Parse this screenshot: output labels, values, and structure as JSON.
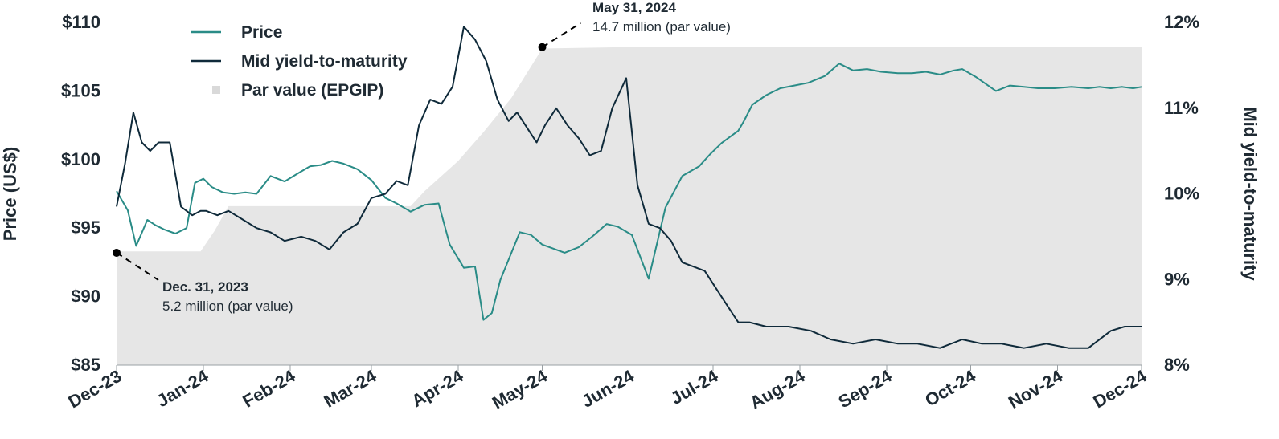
{
  "colors": {
    "price": "#2a8c87",
    "yield": "#0f2a3a",
    "par": "#e6e6e6",
    "text": "#1f2a33"
  },
  "chart_data": {
    "type": "line",
    "xlabel": "",
    "ylabel_left": "Price (US$)",
    "ylabel_right": "Mid yield-to-maturity",
    "x_range": [
      "2023-12-01",
      "2024-12-01"
    ],
    "ylim_left": [
      85,
      110
    ],
    "ylim_right": [
      8,
      12
    ],
    "yticks_left": [
      "$85",
      "$90",
      "$95",
      "$100",
      "$105",
      "$110"
    ],
    "yticks_left_values": [
      85,
      90,
      95,
      100,
      105,
      110
    ],
    "yticks_right": [
      "8%",
      "9%",
      "10%",
      "11%",
      "12%"
    ],
    "yticks_right_values": [
      8,
      9,
      10,
      11,
      12
    ],
    "xticks": [
      "Dec-23",
      "Jan-24",
      "Feb-24",
      "Mar-24",
      "Apr-24",
      "May-24",
      "Jun-24",
      "Jul-24",
      "Aug-24",
      "Sep-24",
      "Oct-24",
      "Nov-24",
      "Dec-24"
    ],
    "xtick_dates": [
      "2023-12-01",
      "2024-01-01",
      "2024-02-01",
      "2024-03-01",
      "2024-04-01",
      "2024-05-01",
      "2024-06-01",
      "2024-07-01",
      "2024-08-01",
      "2024-09-01",
      "2024-10-01",
      "2024-11-01",
      "2024-12-01"
    ],
    "legend": [
      {
        "name": "Price",
        "marker": "line"
      },
      {
        "name": "Mid yield-to-maturity",
        "marker": "line"
      },
      {
        "name": "Par value (EPGIP)",
        "marker": "square"
      }
    ],
    "legend_position": "top-left",
    "grid": false,
    "series": [
      {
        "name": "Price",
        "axis": "left",
        "x": [
          "2023-12-01",
          "2023-12-05",
          "2023-12-08",
          "2023-12-12",
          "2023-12-15",
          "2023-12-18",
          "2023-12-22",
          "2023-12-26",
          "2023-12-29",
          "2024-01-01",
          "2024-01-04",
          "2024-01-08",
          "2024-01-12",
          "2024-01-16",
          "2024-01-20",
          "2024-01-25",
          "2024-01-30",
          "2024-02-03",
          "2024-02-08",
          "2024-02-12",
          "2024-02-16",
          "2024-02-20",
          "2024-02-25",
          "2024-03-01",
          "2024-03-06",
          "2024-03-10",
          "2024-03-15",
          "2024-03-20",
          "2024-03-25",
          "2024-03-29",
          "2024-04-03",
          "2024-04-07",
          "2024-04-10",
          "2024-04-13",
          "2024-04-16",
          "2024-04-20",
          "2024-04-23",
          "2024-04-27",
          "2024-05-01",
          "2024-05-05",
          "2024-05-09",
          "2024-05-14",
          "2024-05-19",
          "2024-05-24",
          "2024-05-28",
          "2024-06-02",
          "2024-06-08",
          "2024-06-14",
          "2024-06-20",
          "2024-06-26",
          "2024-06-30",
          "2024-07-04",
          "2024-07-08",
          "2024-07-10",
          "2024-07-12",
          "2024-07-15",
          "2024-07-20",
          "2024-07-25",
          "2024-07-30",
          "2024-08-04",
          "2024-08-10",
          "2024-08-15",
          "2024-08-20",
          "2024-08-25",
          "2024-08-30",
          "2024-09-05",
          "2024-09-10",
          "2024-09-15",
          "2024-09-20",
          "2024-09-25",
          "2024-09-28",
          "2024-10-03",
          "2024-10-10",
          "2024-10-15",
          "2024-10-20",
          "2024-10-25",
          "2024-10-31",
          "2024-11-06",
          "2024-11-12",
          "2024-11-16",
          "2024-11-20",
          "2024-11-24",
          "2024-11-28",
          "2024-12-01"
        ],
        "values": [
          97.7,
          96.3,
          93.7,
          95.6,
          95.2,
          94.9,
          94.6,
          95.0,
          98.3,
          98.6,
          98.0,
          97.6,
          97.5,
          97.6,
          97.5,
          98.8,
          98.4,
          98.9,
          99.5,
          99.6,
          99.9,
          99.7,
          99.3,
          98.5,
          97.2,
          96.8,
          96.2,
          96.7,
          96.8,
          93.8,
          92.1,
          92.2,
          88.3,
          88.8,
          91.2,
          93.2,
          94.7,
          94.5,
          93.8,
          93.5,
          93.2,
          93.6,
          94.4,
          95.3,
          95.1,
          94.5,
          91.3,
          96.5,
          98.8,
          99.5,
          100.4,
          101.2,
          101.8,
          102.1,
          102.8,
          104.0,
          104.7,
          105.2,
          105.4,
          105.6,
          106.1,
          107.0,
          106.5,
          106.6,
          106.4,
          106.3,
          106.3,
          106.4,
          106.2,
          106.5,
          106.6,
          106.0,
          105.0,
          105.4,
          105.3,
          105.2,
          105.2,
          105.3,
          105.2,
          105.3,
          105.2,
          105.3,
          105.2,
          105.3
        ],
        "stroke_width": 2
      },
      {
        "name": "Mid yield-to-maturity",
        "axis": "right",
        "x": [
          "2023-12-01",
          "2023-12-04",
          "2023-12-07",
          "2023-12-10",
          "2023-12-13",
          "2023-12-16",
          "2023-12-20",
          "2023-12-24",
          "2023-12-28",
          "2023-12-31",
          "2024-01-02",
          "2024-01-06",
          "2024-01-10",
          "2024-01-15",
          "2024-01-20",
          "2024-01-25",
          "2024-01-30",
          "2024-02-05",
          "2024-02-10",
          "2024-02-15",
          "2024-02-20",
          "2024-02-25",
          "2024-03-01",
          "2024-03-06",
          "2024-03-10",
          "2024-03-14",
          "2024-03-18",
          "2024-03-22",
          "2024-03-26",
          "2024-03-30",
          "2024-04-03",
          "2024-04-07",
          "2024-04-11",
          "2024-04-15",
          "2024-04-19",
          "2024-04-22",
          "2024-04-25",
          "2024-04-27",
          "2024-04-29",
          "2024-05-02",
          "2024-05-06",
          "2024-05-10",
          "2024-05-14",
          "2024-05-18",
          "2024-05-22",
          "2024-05-26",
          "2024-05-31",
          "2024-06-04",
          "2024-06-08",
          "2024-06-12",
          "2024-06-16",
          "2024-06-20",
          "2024-06-24",
          "2024-06-28",
          "2024-07-02",
          "2024-07-06",
          "2024-07-08",
          "2024-07-10",
          "2024-07-14",
          "2024-07-20",
          "2024-07-28",
          "2024-08-05",
          "2024-08-12",
          "2024-08-20",
          "2024-08-28",
          "2024-09-05",
          "2024-09-12",
          "2024-09-20",
          "2024-09-28",
          "2024-10-05",
          "2024-10-12",
          "2024-10-20",
          "2024-10-28",
          "2024-11-05",
          "2024-11-12",
          "2024-11-20",
          "2024-11-25",
          "2024-12-01"
        ],
        "values": [
          9.85,
          10.35,
          10.95,
          10.6,
          10.5,
          10.6,
          10.6,
          9.85,
          9.75,
          9.8,
          9.8,
          9.75,
          9.8,
          9.7,
          9.6,
          9.55,
          9.45,
          9.5,
          9.45,
          9.35,
          9.55,
          9.65,
          9.95,
          10.0,
          10.15,
          10.1,
          10.8,
          11.1,
          11.05,
          11.25,
          11.95,
          11.8,
          11.55,
          11.1,
          10.85,
          10.95,
          10.8,
          10.7,
          10.6,
          10.8,
          11.0,
          10.8,
          10.65,
          10.45,
          10.5,
          11.0,
          11.35,
          10.1,
          9.65,
          9.6,
          9.45,
          9.2,
          9.15,
          9.1,
          8.9,
          8.7,
          8.6,
          8.5,
          8.5,
          8.45,
          8.45,
          8.4,
          8.3,
          8.25,
          8.3,
          8.25,
          8.25,
          8.2,
          8.3,
          8.25,
          8.25,
          8.2,
          8.25,
          8.2,
          8.2,
          8.4,
          8.45,
          8.45
        ],
        "stroke_width": 2
      },
      {
        "name": "Par value (EPGIP)",
        "type": "area",
        "axis": "left",
        "x": [
          "2023-12-01",
          "2023-12-31",
          "2024-01-05",
          "2024-01-10",
          "2024-03-15",
          "2024-03-20",
          "2024-04-01",
          "2024-04-10",
          "2024-04-20",
          "2024-05-01",
          "2024-05-31",
          "2024-12-01"
        ],
        "values": [
          93.3,
          93.3,
          94.8,
          96.6,
          96.6,
          97.7,
          99.9,
          102.0,
          104.5,
          108.1,
          108.2,
          108.2
        ]
      }
    ],
    "annotations": [
      {
        "date": "Dec. 31, 2023",
        "text": "5.2 million (par value)",
        "x": "2023-12-01",
        "y_left": 93.2
      },
      {
        "date": "May 31, 2024",
        "text": "14.7 million (par value)",
        "x": "2024-05-01",
        "y_left": 108.2
      }
    ]
  }
}
